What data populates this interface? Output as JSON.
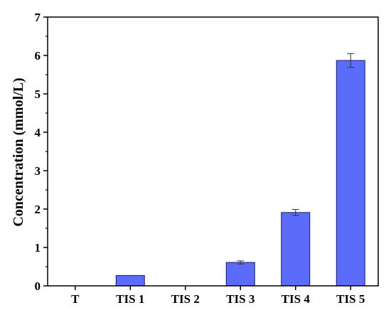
{
  "chart_data": {
    "type": "bar",
    "title": "",
    "xlabel": "",
    "ylabel": "Concentration (mmol/L)",
    "categories": [
      "T",
      "TIS 1",
      "TIS 2",
      "TIS 3",
      "TIS 4",
      "TIS 5"
    ],
    "values": [
      0,
      0.27,
      0,
      0.61,
      1.91,
      5.87
    ],
    "errors": [
      0,
      0,
      0,
      0.04,
      0.08,
      0.18
    ],
    "ylim": [
      0,
      7
    ],
    "yticks": [
      0,
      1,
      2,
      3,
      4,
      5,
      6,
      7
    ],
    "grid": false,
    "legend": "none",
    "bar_color": "#5b6cfa",
    "bar_edge_color": "#1b1b6e"
  }
}
